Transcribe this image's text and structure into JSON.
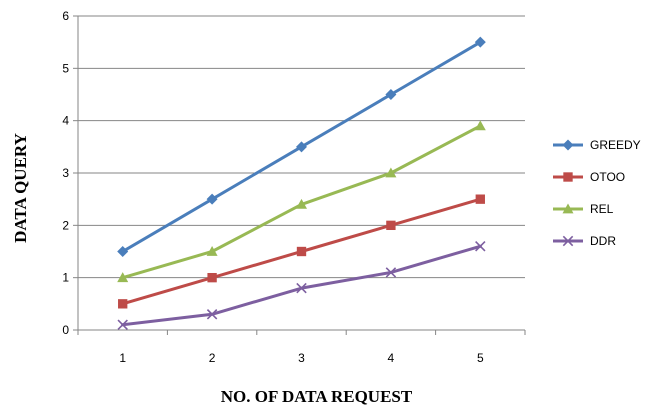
{
  "chart_data": {
    "type": "line",
    "title": "",
    "xlabel": "NO. OF DATA REQUEST",
    "ylabel": "DATA QUERY",
    "categories": [
      "1",
      "2",
      "3",
      "4",
      "5"
    ],
    "ylim": [
      0,
      6
    ],
    "yticks": [
      "0",
      "1",
      "2",
      "3",
      "4",
      "5",
      "6"
    ],
    "grid": "horizontal major gridlines",
    "legend_position": "right",
    "series": [
      {
        "name": "GREEDY",
        "values": [
          1.5,
          2.5,
          3.5,
          4.5,
          5.5
        ],
        "color": "#4a7ebb",
        "marker": "diamond"
      },
      {
        "name": "OTOO",
        "values": [
          0.5,
          1.0,
          1.5,
          2.0,
          2.5
        ],
        "color": "#be4b48",
        "marker": "square"
      },
      {
        "name": "REL",
        "values": [
          1.0,
          1.5,
          2.4,
          3.0,
          3.9
        ],
        "color": "#98b954",
        "marker": "triangle"
      },
      {
        "name": "DDR",
        "values": [
          0.1,
          0.3,
          0.8,
          1.1,
          1.6
        ],
        "color": "#7d5fa0",
        "marker": "x"
      }
    ]
  }
}
